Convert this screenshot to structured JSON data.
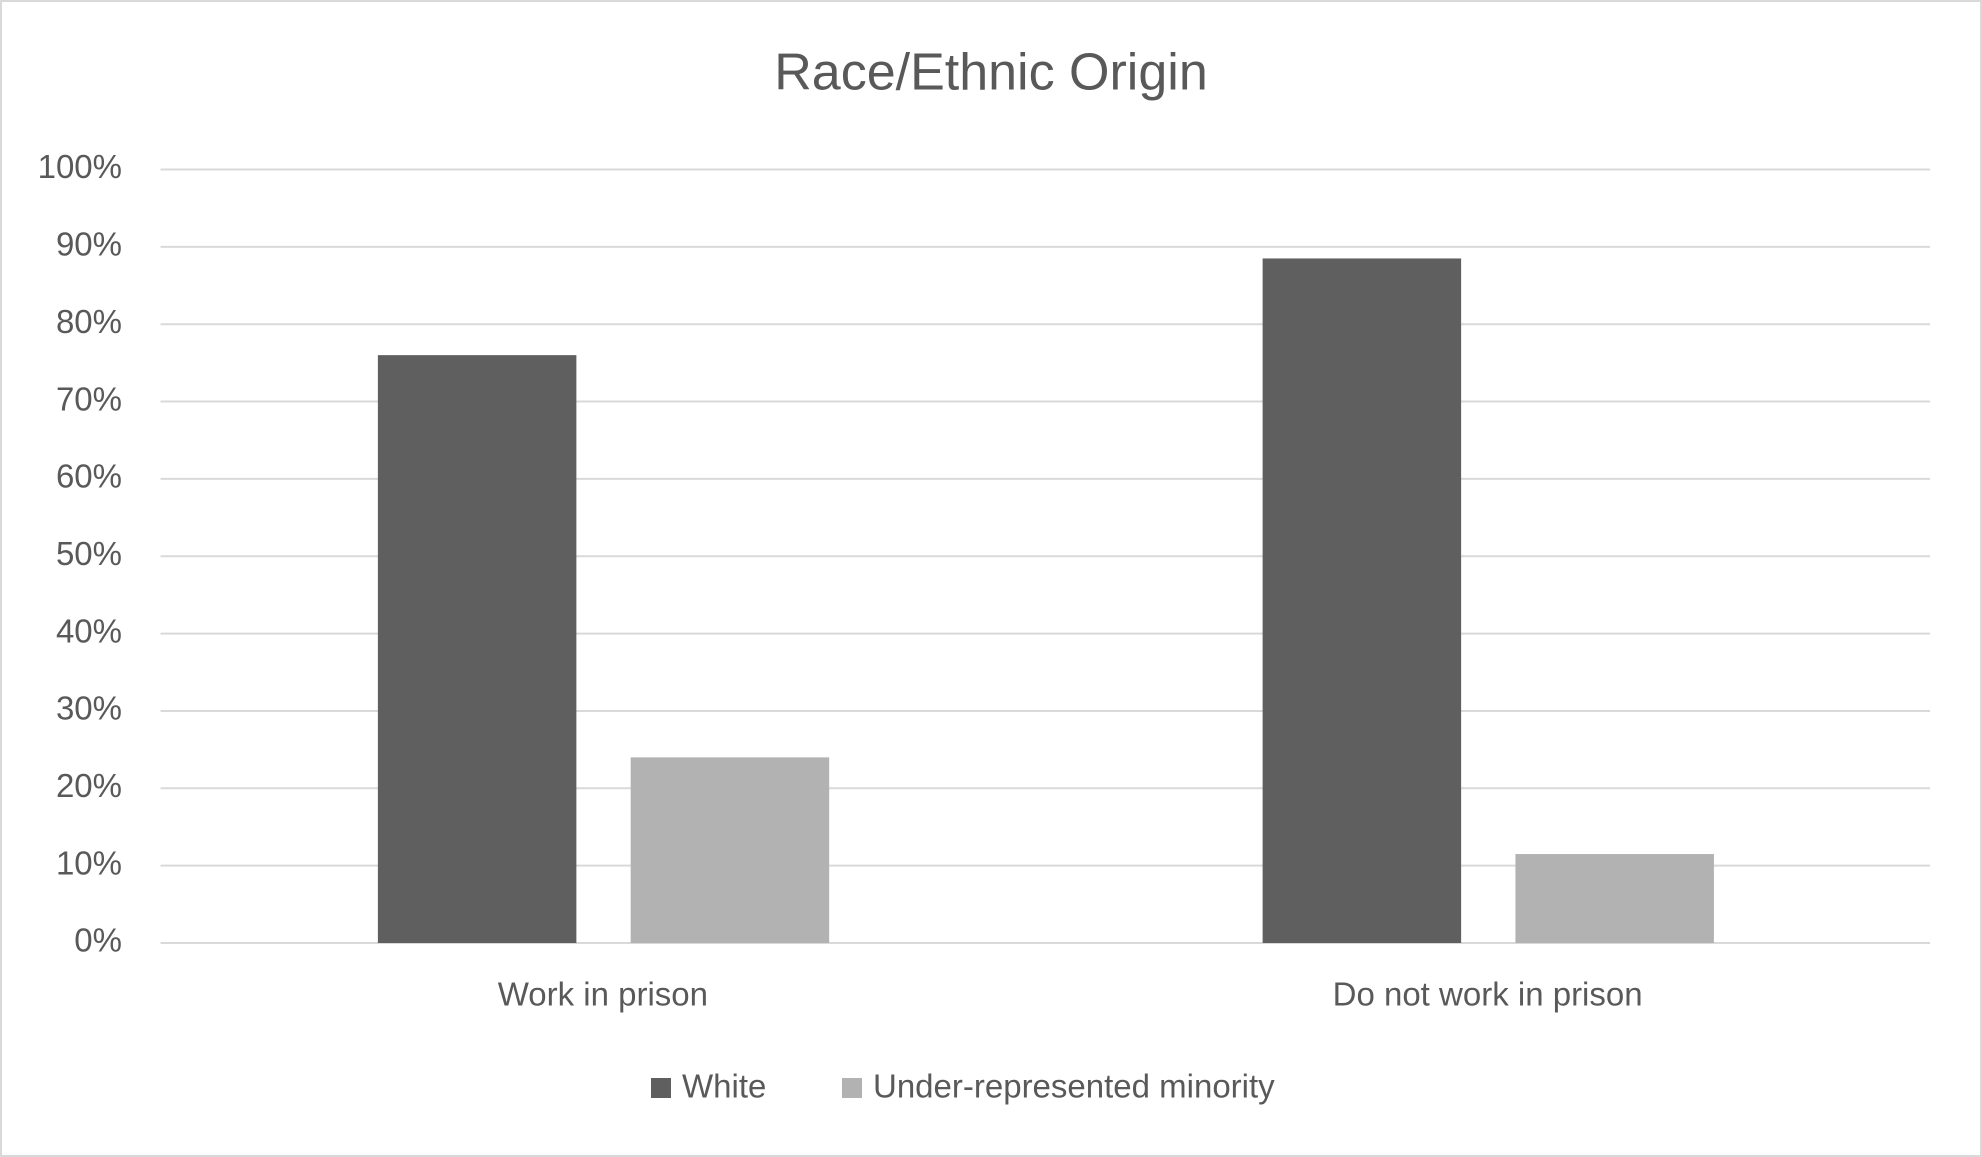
{
  "chart_data": {
    "type": "bar",
    "title": "Race/Ethnic Origin",
    "categories": [
      "Work in prison",
      "Do not work in prison"
    ],
    "series": [
      {
        "name": "White",
        "color": "#5f5f5f",
        "values": [
          76,
          88.5
        ]
      },
      {
        "name": "Under-represented minority",
        "color": "#b2b2b2",
        "values": [
          24,
          11.5
        ]
      }
    ],
    "ylim": [
      0,
      100
    ],
    "yticks": [
      {
        "value": 0,
        "label": "0%"
      },
      {
        "value": 10,
        "label": "10%"
      },
      {
        "value": 20,
        "label": "20%"
      },
      {
        "value": 30,
        "label": "30%"
      },
      {
        "value": 40,
        "label": "40%"
      },
      {
        "value": 50,
        "label": "50%"
      },
      {
        "value": 60,
        "label": "60%"
      },
      {
        "value": 70,
        "label": "70%"
      },
      {
        "value": 80,
        "label": "80%"
      },
      {
        "value": 90,
        "label": "90%"
      },
      {
        "value": 100,
        "label": "100%"
      }
    ],
    "grid": true,
    "legend": "bottom"
  }
}
